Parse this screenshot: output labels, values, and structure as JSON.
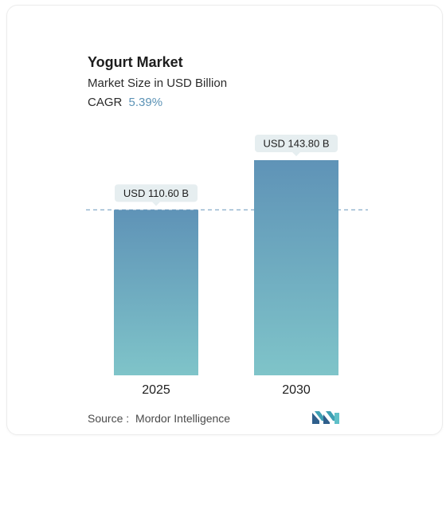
{
  "chart_data": {
    "type": "bar",
    "title": "Yogurt Market",
    "subtitle": "Market Size in USD Billion",
    "cagr_label": "CAGR",
    "cagr_value": "5.39%",
    "categories": [
      "2025",
      "2030"
    ],
    "values": [
      110.6,
      143.8
    ],
    "data_labels": [
      "USD 110.60 B",
      "USD 143.80 B"
    ],
    "reference_line": 110.6,
    "ylim": [
      0,
      143.8
    ],
    "grid": false,
    "colors": {
      "bar_top": "#5f93b7",
      "bar_bottom": "#7fc4c9",
      "dashed_line": "#7aa3c4",
      "label_bg": "#e6eef0"
    }
  },
  "footer": {
    "source_label": "Source :",
    "source_value": "Mordor Intelligence",
    "logo_icon": "mordor-intelligence-logo"
  }
}
